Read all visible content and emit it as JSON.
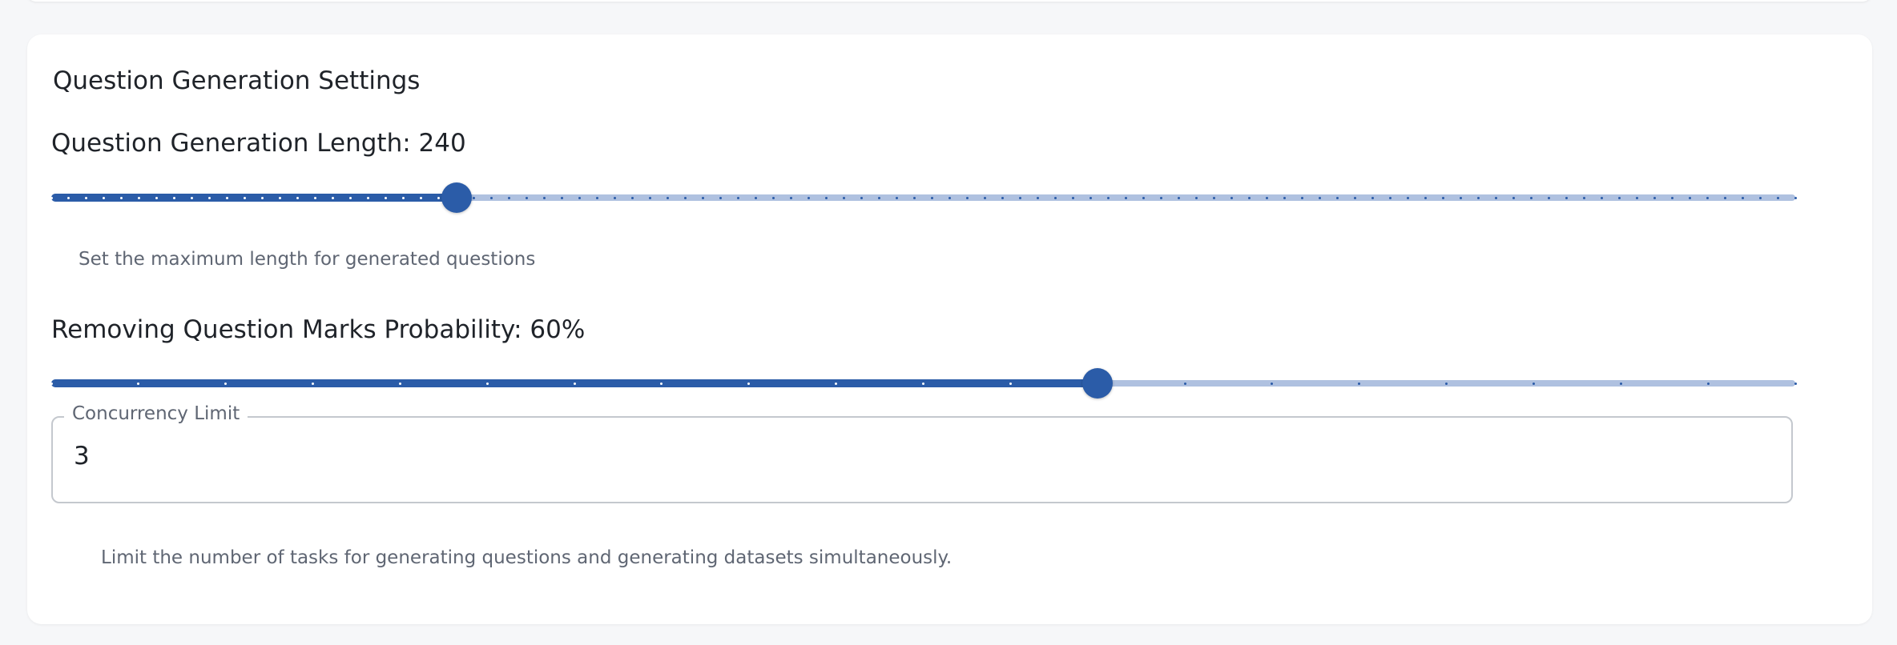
{
  "section": {
    "title": "Question Generation Settings"
  },
  "question_length": {
    "label": "Question Generation Length: 240",
    "value": 240,
    "min": 10,
    "max": 1000,
    "step": 10,
    "helper": "Set the maximum length for generated questions"
  },
  "question_mark_probability": {
    "label": "Removing Question Marks Probability: 60%",
    "value": 60,
    "min": 0,
    "max": 100,
    "step": 5
  },
  "concurrency": {
    "legend": "Concurrency Limit",
    "value": "3",
    "helper": "Limit the number of tasks for generating questions and generating datasets simultaneously."
  },
  "colors": {
    "accent": "#2b5ca8",
    "rail": "#afc1e0"
  }
}
